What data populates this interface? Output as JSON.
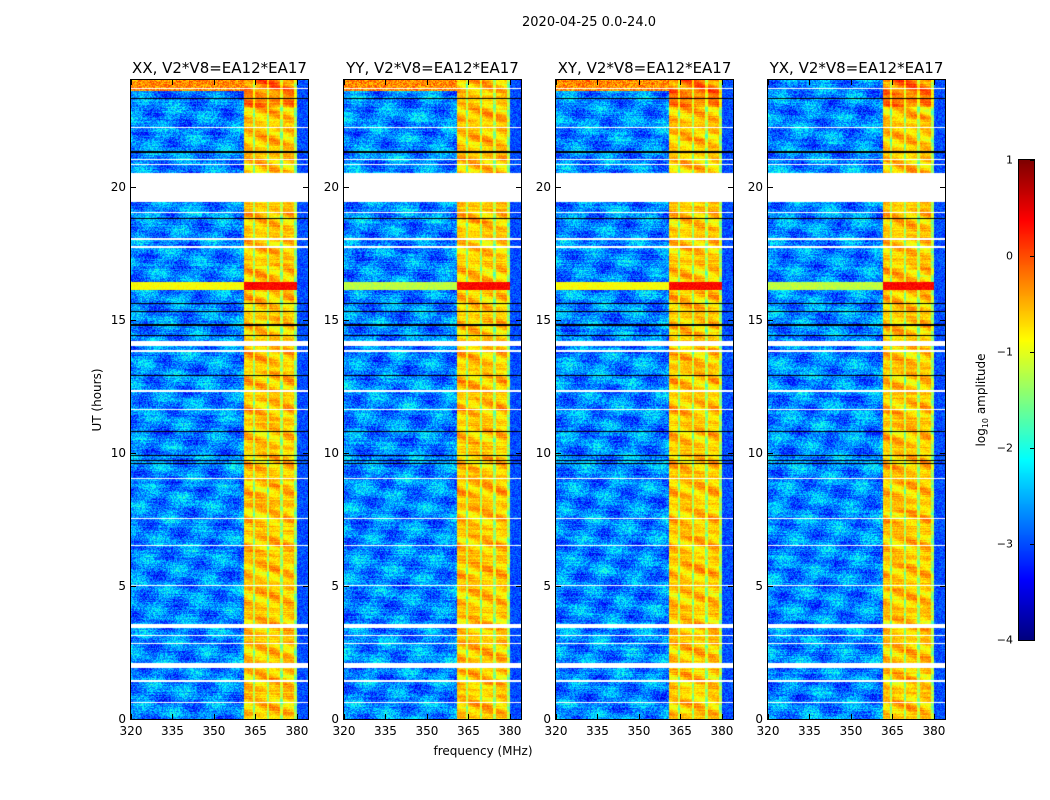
{
  "chart_data": {
    "type": "heatmap",
    "title": "2020-04-25 0.0-24.0",
    "xlabel": "frequency (MHz)",
    "ylabel": "UT (hours)",
    "xlim": [
      320,
      384
    ],
    "ylim": [
      0,
      24
    ],
    "xticks": [
      320,
      335,
      350,
      365,
      380
    ],
    "yticks": [
      0,
      5,
      10,
      15,
      20
    ],
    "panels": [
      {
        "title": "XX, V2*V8=EA12*EA17",
        "band_start_mhz": 361
      },
      {
        "title": "YY, V2*V8=EA12*EA17",
        "band_start_mhz": 361
      },
      {
        "title": "XY, V2*V8=EA12*EA17",
        "band_start_mhz": 361
      },
      {
        "title": "YX, V2*V8=EA12*EA17",
        "band_start_mhz": 361.5
      }
    ],
    "background_level": -2.7,
    "band_level": -0.6,
    "band_freq_range_mhz": [
      361,
      380
    ],
    "band_dip_freqs_mhz": [
      364.5,
      369.5,
      374.5,
      379.5
    ],
    "flagged_time_ranges_h": [
      [
        19.4,
        20.5
      ],
      [
        23.65,
        23.7
      ],
      [
        22.2,
        22.25
      ],
      [
        21.0,
        21.05
      ],
      [
        20.8,
        20.85
      ],
      [
        19.0,
        19.05
      ],
      [
        18.0,
        18.05
      ],
      [
        17.7,
        17.75
      ],
      [
        14.0,
        14.2
      ],
      [
        13.8,
        13.85
      ],
      [
        12.3,
        12.35
      ],
      [
        11.6,
        11.65
      ],
      [
        9.0,
        9.05
      ],
      [
        7.5,
        7.55
      ],
      [
        6.5,
        6.55
      ],
      [
        5.0,
        5.05
      ],
      [
        3.4,
        3.55
      ],
      [
        3.1,
        3.15
      ],
      [
        2.8,
        2.85
      ],
      [
        1.9,
        2.1
      ],
      [
        1.4,
        1.45
      ],
      [
        0.6,
        0.65
      ]
    ],
    "black_line_times_h": [
      23.3,
      21.3,
      18.8,
      15.6,
      15.3,
      14.8,
      14.4,
      12.9,
      10.8,
      9.9,
      9.7,
      9.6,
      1.95
    ],
    "strong_rfi_time_range_h": [
      16.1,
      16.4
    ],
    "colorbar": {
      "label_main": "log",
      "label_sub": "10",
      "label_rest": " amplitude",
      "range": [
        -4,
        1
      ],
      "ticks": [
        1,
        0,
        -1,
        -2,
        -3,
        -4
      ],
      "tick_labels": [
        "1",
        "0",
        "−1",
        "−2",
        "−3",
        "−4"
      ],
      "colormap": "jet"
    }
  }
}
